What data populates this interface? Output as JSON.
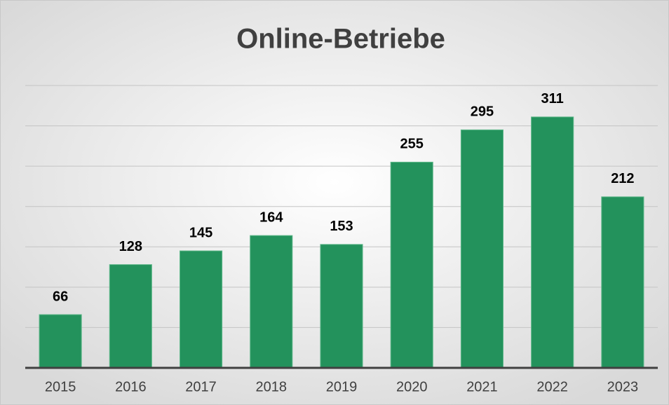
{
  "chart_data": {
    "type": "bar",
    "title": "Online-Betriebe",
    "categories": [
      "2015",
      "2016",
      "2017",
      "2018",
      "2019",
      "2020",
      "2021",
      "2022",
      "2023"
    ],
    "values": [
      66,
      128,
      145,
      164,
      153,
      255,
      295,
      311,
      212
    ],
    "color": "#23925c",
    "ylim": [
      0,
      350
    ],
    "yticks": [
      0,
      50,
      100,
      150,
      200,
      250,
      300,
      350
    ],
    "grid": true
  }
}
